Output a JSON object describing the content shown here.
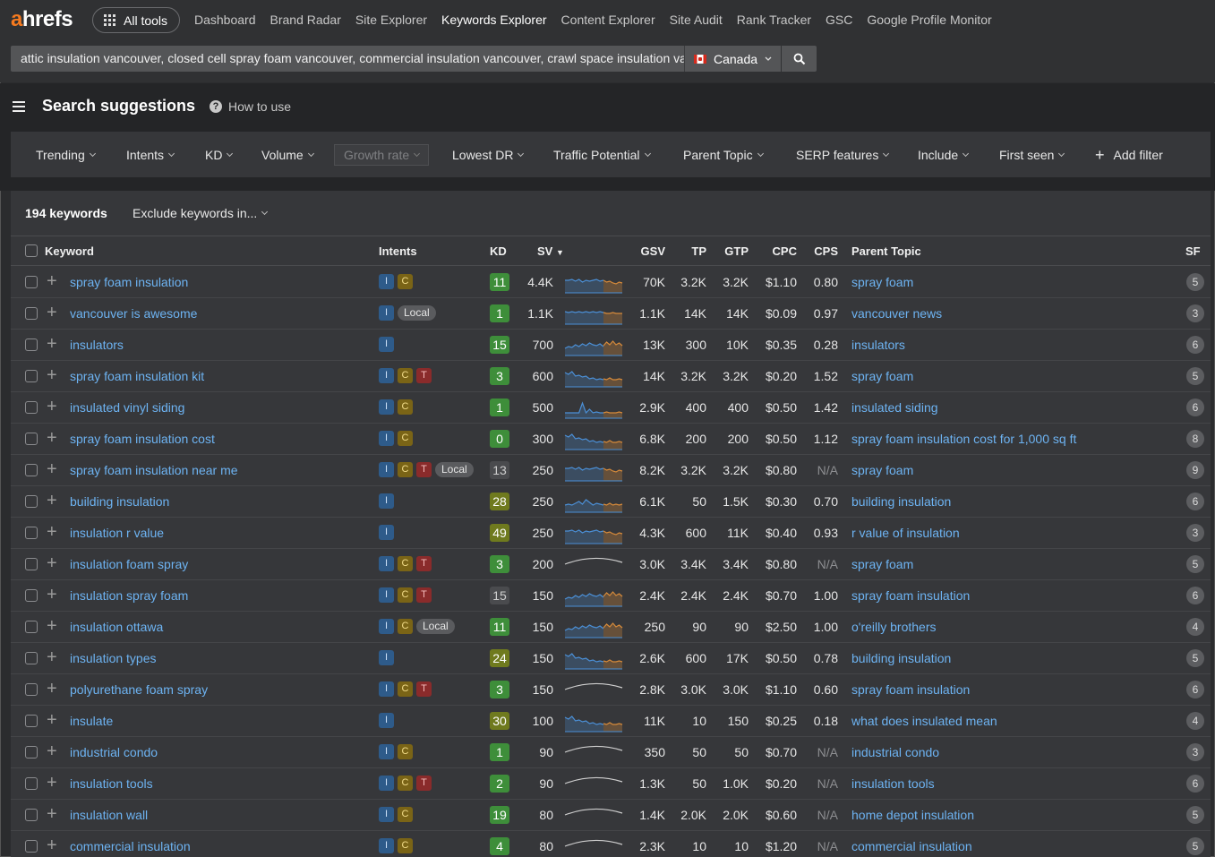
{
  "brand": {
    "logo_prefix": "a",
    "logo_rest": "hrefs"
  },
  "nav": {
    "all_tools": "All tools",
    "links": [
      "Dashboard",
      "Brand Radar",
      "Site Explorer",
      "Keywords Explorer",
      "Content Explorer",
      "Site Audit",
      "Rank Tracker",
      "GSC",
      "Google Profile Monitor"
    ],
    "active": "Keywords Explorer"
  },
  "search": {
    "value": "attic insulation vancouver, closed cell spray foam vancouver, commercial insulation vancouver, crawl space insulation vancouver",
    "country": "Canada"
  },
  "page": {
    "title": "Search suggestions",
    "how_to": "How to use"
  },
  "filters": [
    "Trending",
    "Intents",
    "KD",
    "Volume",
    "Growth rate",
    "Lowest DR",
    "Traffic Potential",
    "Parent Topic",
    "SERP features",
    "Include",
    "First seen"
  ],
  "add_filter": "Add filter",
  "summary": {
    "count": "194 keywords",
    "exclude": "Exclude keywords in..."
  },
  "columns": {
    "keyword": "Keyword",
    "intents": "Intents",
    "kd": "KD",
    "sv": "SV",
    "gsv": "GSV",
    "tp": "TP",
    "gtp": "GTP",
    "cpc": "CPC",
    "cps": "CPS",
    "parent_topic": "Parent Topic",
    "sf": "SF"
  },
  "colors": {
    "kd_green": "#3e8e3a",
    "kd_olive": "#6f7a1e",
    "kd_neutral": "#4a4b4e",
    "link": "#6db3f2",
    "spark_blue": "#4b8fd6",
    "spark_orange": "#d68a3a"
  },
  "rows": [
    {
      "keyword": "spray foam insulation",
      "intents": [
        "I",
        "C"
      ],
      "kd": "11",
      "kd_tone": "green",
      "sv": "4.4K",
      "trend": "wave",
      "gsv": "70K",
      "tp": "3.2K",
      "gtp": "3.2K",
      "cpc": "$1.10",
      "cps": "0.80",
      "parent_topic": "spray foam",
      "sf": "5"
    },
    {
      "keyword": "vancouver is awesome",
      "intents": [
        "I",
        "Local"
      ],
      "kd": "1",
      "kd_tone": "green",
      "sv": "1.1K",
      "trend": "flat",
      "gsv": "1.1K",
      "tp": "14K",
      "gtp": "14K",
      "cpc": "$0.09",
      "cps": "0.97",
      "parent_topic": "vancouver news",
      "sf": "3"
    },
    {
      "keyword": "insulators",
      "intents": [
        "I"
      ],
      "kd": "15",
      "kd_tone": "green",
      "sv": "700",
      "trend": "rise",
      "gsv": "13K",
      "tp": "300",
      "gtp": "10K",
      "cpc": "$0.35",
      "cps": "0.28",
      "parent_topic": "insulators",
      "sf": "6"
    },
    {
      "keyword": "spray foam insulation kit",
      "intents": [
        "I",
        "C",
        "T"
      ],
      "kd": "3",
      "kd_tone": "green",
      "sv": "600",
      "trend": "decline",
      "gsv": "14K",
      "tp": "3.2K",
      "gtp": "3.2K",
      "cpc": "$0.20",
      "cps": "1.52",
      "parent_topic": "spray foam",
      "sf": "5"
    },
    {
      "keyword": "insulated vinyl siding",
      "intents": [
        "I",
        "C"
      ],
      "kd": "1",
      "kd_tone": "green",
      "sv": "500",
      "trend": "spike",
      "gsv": "2.9K",
      "tp": "400",
      "gtp": "400",
      "cpc": "$0.50",
      "cps": "1.42",
      "parent_topic": "insulated siding",
      "sf": "6"
    },
    {
      "keyword": "spray foam insulation cost",
      "intents": [
        "I",
        "C"
      ],
      "kd": "0",
      "kd_tone": "green",
      "sv": "300",
      "trend": "decline",
      "gsv": "6.8K",
      "tp": "200",
      "gtp": "200",
      "cpc": "$0.50",
      "cps": "1.12",
      "parent_topic": "spray foam insulation cost for 1,000 sq ft",
      "sf": "8"
    },
    {
      "keyword": "spray foam insulation near me",
      "intents": [
        "I",
        "C",
        "T",
        "Local"
      ],
      "kd": "13",
      "kd_tone": "neutral",
      "sv": "250",
      "trend": "wave",
      "gsv": "8.2K",
      "tp": "3.2K",
      "gtp": "3.2K",
      "cpc": "$0.80",
      "cps": "N/A",
      "parent_topic": "spray foam",
      "sf": "9"
    },
    {
      "keyword": "building insulation",
      "intents": [
        "I"
      ],
      "kd": "28",
      "kd_tone": "olive",
      "sv": "250",
      "trend": "noisy",
      "gsv": "6.1K",
      "tp": "50",
      "gtp": "1.5K",
      "cpc": "$0.30",
      "cps": "0.70",
      "parent_topic": "building insulation",
      "sf": "6"
    },
    {
      "keyword": "insulation r value",
      "intents": [
        "I"
      ],
      "kd": "49",
      "kd_tone": "olive",
      "sv": "250",
      "trend": "wave",
      "gsv": "4.3K",
      "tp": "600",
      "gtp": "11K",
      "cpc": "$0.40",
      "cps": "0.93",
      "parent_topic": "r value of insulation",
      "sf": "3"
    },
    {
      "keyword": "insulation foam spray",
      "intents": [
        "I",
        "C",
        "T"
      ],
      "kd": "3",
      "kd_tone": "green",
      "sv": "200",
      "trend": "arc",
      "gsv": "3.0K",
      "tp": "3.4K",
      "gtp": "3.4K",
      "cpc": "$0.80",
      "cps": "N/A",
      "parent_topic": "spray foam",
      "sf": "5"
    },
    {
      "keyword": "insulation spray foam",
      "intents": [
        "I",
        "C",
        "T"
      ],
      "kd": "15",
      "kd_tone": "neutral",
      "sv": "150",
      "trend": "rise",
      "gsv": "2.4K",
      "tp": "2.4K",
      "gtp": "2.4K",
      "cpc": "$0.70",
      "cps": "1.00",
      "parent_topic": "spray foam insulation",
      "sf": "6"
    },
    {
      "keyword": "insulation ottawa",
      "intents": [
        "I",
        "C",
        "Local"
      ],
      "kd": "11",
      "kd_tone": "green",
      "sv": "150",
      "trend": "rise",
      "gsv": "250",
      "tp": "90",
      "gtp": "90",
      "cpc": "$2.50",
      "cps": "1.00",
      "parent_topic": "o'reilly brothers",
      "sf": "4"
    },
    {
      "keyword": "insulation types",
      "intents": [
        "I"
      ],
      "kd": "24",
      "kd_tone": "olive",
      "sv": "150",
      "trend": "decline",
      "gsv": "2.6K",
      "tp": "600",
      "gtp": "17K",
      "cpc": "$0.50",
      "cps": "0.78",
      "parent_topic": "building insulation",
      "sf": "5"
    },
    {
      "keyword": "polyurethane foam spray",
      "intents": [
        "I",
        "C",
        "T"
      ],
      "kd": "3",
      "kd_tone": "green",
      "sv": "150",
      "trend": "arc",
      "gsv": "2.8K",
      "tp": "3.0K",
      "gtp": "3.0K",
      "cpc": "$1.10",
      "cps": "0.60",
      "parent_topic": "spray foam insulation",
      "sf": "6"
    },
    {
      "keyword": "insulate",
      "intents": [
        "I"
      ],
      "kd": "30",
      "kd_tone": "olive",
      "sv": "100",
      "trend": "decline",
      "gsv": "11K",
      "tp": "10",
      "gtp": "150",
      "cpc": "$0.25",
      "cps": "0.18",
      "parent_topic": "what does insulated mean",
      "sf": "4"
    },
    {
      "keyword": "industrial condo",
      "intents": [
        "I",
        "C"
      ],
      "kd": "1",
      "kd_tone": "green",
      "sv": "90",
      "trend": "arc",
      "gsv": "350",
      "tp": "50",
      "gtp": "50",
      "cpc": "$0.70",
      "cps": "N/A",
      "parent_topic": "industrial condo",
      "sf": "3"
    },
    {
      "keyword": "insulation tools",
      "intents": [
        "I",
        "C",
        "T"
      ],
      "kd": "2",
      "kd_tone": "green",
      "sv": "90",
      "trend": "arc",
      "gsv": "1.3K",
      "tp": "50",
      "gtp": "1.0K",
      "cpc": "$0.20",
      "cps": "N/A",
      "parent_topic": "insulation tools",
      "sf": "6"
    },
    {
      "keyword": "insulation wall",
      "intents": [
        "I",
        "C"
      ],
      "kd": "19",
      "kd_tone": "green",
      "sv": "80",
      "trend": "arc",
      "gsv": "1.4K",
      "tp": "2.0K",
      "gtp": "2.0K",
      "cpc": "$0.60",
      "cps": "N/A",
      "parent_topic": "home depot insulation",
      "sf": "5"
    },
    {
      "keyword": "commercial insulation",
      "intents": [
        "I",
        "C"
      ],
      "kd": "4",
      "kd_tone": "green",
      "sv": "80",
      "trend": "arc",
      "gsv": "2.3K",
      "tp": "10",
      "gtp": "10",
      "cpc": "$1.20",
      "cps": "N/A",
      "parent_topic": "commercial insulation",
      "sf": "5"
    }
  ]
}
